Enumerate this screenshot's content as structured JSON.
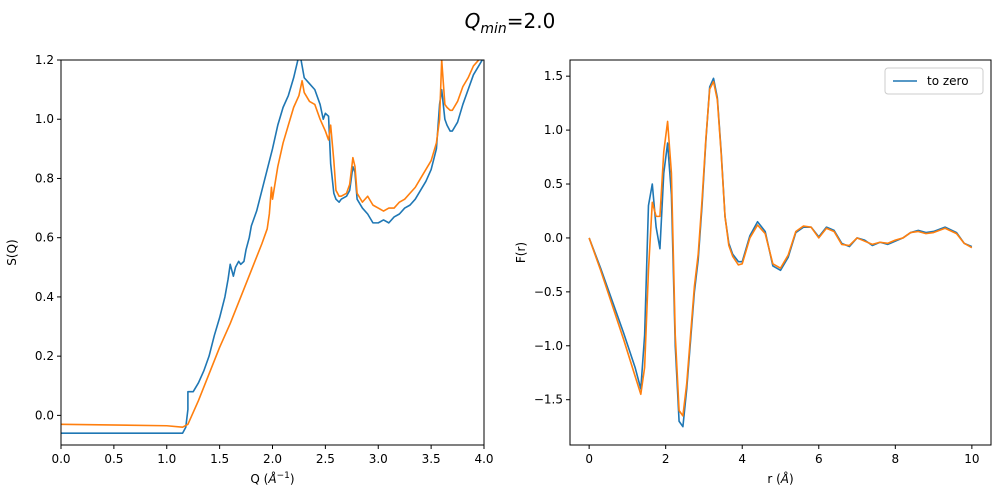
{
  "figure": {
    "title_main": "Q",
    "title_sub": "min",
    "title_rest": "=2.0"
  },
  "colors": {
    "series1": "#1f77b4",
    "series2": "#ff7f0e",
    "axis": "#000000"
  },
  "chart_data": [
    {
      "type": "line",
      "xlabel_main": "Q (",
      "xlabel_unit": "Å",
      "xlabel_sup": "−1",
      "xlabel_end": ")",
      "ylabel": "S(Q)",
      "xlim": [
        0.0,
        4.0
      ],
      "ylim": [
        -0.1,
        1.2
      ],
      "xticks": [
        "0.0",
        "0.5",
        "1.0",
        "1.5",
        "2.0",
        "2.5",
        "3.0",
        "3.5",
        "4.0"
      ],
      "yticks": [
        "0.0",
        "0.2",
        "0.4",
        "0.6",
        "0.8",
        "1.0",
        "1.2"
      ],
      "series": [
        {
          "color": "#1f77b4",
          "x": [
            0.0,
            1.1,
            1.15,
            1.18,
            1.2,
            1.2,
            1.25,
            1.3,
            1.35,
            1.4,
            1.45,
            1.5,
            1.55,
            1.58,
            1.6,
            1.63,
            1.65,
            1.68,
            1.7,
            1.73,
            1.75,
            1.78,
            1.8,
            1.85,
            1.9,
            1.95,
            2.0,
            2.05,
            2.1,
            2.15,
            2.2,
            2.24,
            2.26,
            2.28,
            2.3,
            2.35,
            2.4,
            2.45,
            2.48,
            2.5,
            2.53,
            2.55,
            2.58,
            2.6,
            2.63,
            2.65,
            2.7,
            2.73,
            2.76,
            2.78,
            2.8,
            2.85,
            2.9,
            2.95,
            3.0,
            3.05,
            3.1,
            3.15,
            3.2,
            3.25,
            3.3,
            3.35,
            3.4,
            3.45,
            3.5,
            3.55,
            3.58,
            3.6,
            3.63,
            3.65,
            3.68,
            3.7,
            3.75,
            3.8,
            3.85,
            3.9,
            3.95,
            4.0
          ],
          "y": [
            -0.06,
            -0.06,
            -0.06,
            -0.04,
            0.02,
            0.08,
            0.08,
            0.11,
            0.15,
            0.2,
            0.27,
            0.33,
            0.4,
            0.46,
            0.51,
            0.47,
            0.5,
            0.52,
            0.51,
            0.52,
            0.56,
            0.6,
            0.64,
            0.69,
            0.76,
            0.83,
            0.9,
            0.98,
            1.04,
            1.08,
            1.14,
            1.2,
            1.22,
            1.18,
            1.14,
            1.12,
            1.1,
            1.05,
            1.0,
            1.02,
            1.01,
            0.85,
            0.75,
            0.73,
            0.72,
            0.73,
            0.74,
            0.76,
            0.84,
            0.82,
            0.73,
            0.7,
            0.68,
            0.65,
            0.65,
            0.66,
            0.65,
            0.67,
            0.68,
            0.7,
            0.71,
            0.73,
            0.76,
            0.79,
            0.83,
            0.9,
            1.05,
            1.1,
            1.0,
            0.98,
            0.96,
            0.96,
            0.99,
            1.05,
            1.1,
            1.15,
            1.18,
            1.21
          ]
        },
        {
          "color": "#ff7f0e",
          "x": [
            0.0,
            1.0,
            1.15,
            1.2,
            1.3,
            1.4,
            1.5,
            1.6,
            1.7,
            1.8,
            1.9,
            1.95,
            1.97,
            1.99,
            2.0,
            2.05,
            2.1,
            2.15,
            2.2,
            2.25,
            2.28,
            2.3,
            2.35,
            2.4,
            2.45,
            2.5,
            2.53,
            2.55,
            2.58,
            2.6,
            2.63,
            2.65,
            2.7,
            2.73,
            2.76,
            2.78,
            2.8,
            2.85,
            2.9,
            2.95,
            3.0,
            3.05,
            3.1,
            3.15,
            3.2,
            3.25,
            3.3,
            3.35,
            3.4,
            3.45,
            3.5,
            3.55,
            3.58,
            3.6,
            3.63,
            3.65,
            3.68,
            3.7,
            3.75,
            3.8,
            3.85,
            3.9,
            3.95,
            4.0
          ],
          "y": [
            -0.03,
            -0.035,
            -0.04,
            -0.03,
            0.05,
            0.14,
            0.23,
            0.31,
            0.4,
            0.49,
            0.58,
            0.63,
            0.68,
            0.77,
            0.73,
            0.84,
            0.92,
            0.98,
            1.04,
            1.08,
            1.13,
            1.09,
            1.06,
            1.05,
            1.0,
            0.96,
            0.93,
            0.98,
            0.86,
            0.76,
            0.74,
            0.74,
            0.75,
            0.78,
            0.87,
            0.84,
            0.75,
            0.72,
            0.74,
            0.71,
            0.7,
            0.69,
            0.7,
            0.7,
            0.72,
            0.73,
            0.75,
            0.77,
            0.8,
            0.83,
            0.86,
            0.92,
            1.0,
            1.2,
            1.05,
            1.04,
            1.03,
            1.03,
            1.06,
            1.11,
            1.14,
            1.18,
            1.2,
            1.22
          ]
        }
      ]
    },
    {
      "type": "line",
      "xlabel_main": "r (",
      "xlabel_unit": "Å",
      "xlabel_sup": "",
      "xlabel_end": ")",
      "ylabel": "F(r)",
      "xlim": [
        -0.5,
        10.5
      ],
      "ylim": [
        -1.92,
        1.65
      ],
      "xticks": [
        "0",
        "2",
        "4",
        "6",
        "8",
        "10"
      ],
      "xtick_values": [
        0,
        2,
        4,
        6,
        8,
        10
      ],
      "yticks": [
        "−1.5",
        "−1.0",
        "−0.5",
        "0.0",
        "0.5",
        "1.0",
        "1.5"
      ],
      "ytick_values": [
        -1.5,
        -1.0,
        -0.5,
        0.0,
        0.5,
        1.0,
        1.5
      ],
      "legend": {
        "location": "top-right",
        "entries": [
          {
            "label": "to zero",
            "color": "#1f77b4"
          }
        ]
      },
      "series": [
        {
          "name": "to zero",
          "color": "#1f77b4",
          "x": [
            0.0,
            0.3,
            0.6,
            0.9,
            1.2,
            1.35,
            1.45,
            1.55,
            1.65,
            1.75,
            1.85,
            1.95,
            2.05,
            2.15,
            2.25,
            2.35,
            2.45,
            2.55,
            2.65,
            2.75,
            2.85,
            2.95,
            3.05,
            3.15,
            3.25,
            3.35,
            3.45,
            3.55,
            3.65,
            3.75,
            3.9,
            4.0,
            4.2,
            4.4,
            4.6,
            4.8,
            5.0,
            5.2,
            5.4,
            5.6,
            5.8,
            6.0,
            6.2,
            6.4,
            6.6,
            6.8,
            7.0,
            7.2,
            7.4,
            7.6,
            7.8,
            8.0,
            8.2,
            8.4,
            8.6,
            8.8,
            9.0,
            9.3,
            9.6,
            9.8,
            10.0
          ],
          "y": [
            0.0,
            -0.28,
            -0.58,
            -0.88,
            -1.2,
            -1.4,
            -0.9,
            0.3,
            0.5,
            0.1,
            -0.1,
            0.6,
            0.88,
            0.4,
            -1.0,
            -1.7,
            -1.75,
            -1.4,
            -0.95,
            -0.5,
            -0.2,
            0.3,
            0.9,
            1.4,
            1.48,
            1.3,
            0.8,
            0.2,
            -0.05,
            -0.15,
            -0.22,
            -0.22,
            0.02,
            0.15,
            0.06,
            -0.26,
            -0.3,
            -0.18,
            0.05,
            0.1,
            0.1,
            0.01,
            0.1,
            0.07,
            -0.05,
            -0.08,
            0.0,
            -0.02,
            -0.07,
            -0.04,
            -0.06,
            -0.03,
            0.0,
            0.05,
            0.07,
            0.05,
            0.06,
            0.1,
            0.05,
            -0.05,
            -0.08
          ]
        },
        {
          "color": "#ff7f0e",
          "x": [
            0.0,
            0.3,
            0.6,
            0.9,
            1.2,
            1.35,
            1.45,
            1.55,
            1.65,
            1.75,
            1.85,
            1.95,
            2.05,
            2.15,
            2.25,
            2.35,
            2.45,
            2.55,
            2.65,
            2.75,
            2.85,
            2.95,
            3.05,
            3.15,
            3.25,
            3.35,
            3.45,
            3.55,
            3.65,
            3.75,
            3.9,
            4.0,
            4.2,
            4.4,
            4.6,
            4.8,
            5.0,
            5.2,
            5.4,
            5.6,
            5.8,
            6.0,
            6.2,
            6.4,
            6.6,
            6.8,
            7.0,
            7.2,
            7.4,
            7.6,
            7.8,
            8.0,
            8.2,
            8.4,
            8.6,
            8.8,
            9.0,
            9.3,
            9.6,
            9.8,
            10.0
          ],
          "y": [
            0.0,
            -0.3,
            -0.62,
            -0.94,
            -1.28,
            -1.45,
            -1.2,
            -0.3,
            0.33,
            0.2,
            0.2,
            0.8,
            1.08,
            0.6,
            -0.9,
            -1.6,
            -1.65,
            -1.35,
            -0.9,
            -0.45,
            -0.15,
            0.35,
            0.92,
            1.38,
            1.45,
            1.28,
            0.78,
            0.2,
            -0.07,
            -0.17,
            -0.25,
            -0.24,
            0.0,
            0.12,
            0.04,
            -0.24,
            -0.28,
            -0.16,
            0.06,
            0.11,
            0.1,
            0.0,
            0.09,
            0.06,
            -0.06,
            -0.07,
            0.0,
            -0.03,
            -0.06,
            -0.04,
            -0.05,
            -0.02,
            0.0,
            0.05,
            0.06,
            0.04,
            0.05,
            0.09,
            0.04,
            -0.05,
            -0.09
          ]
        }
      ]
    }
  ]
}
